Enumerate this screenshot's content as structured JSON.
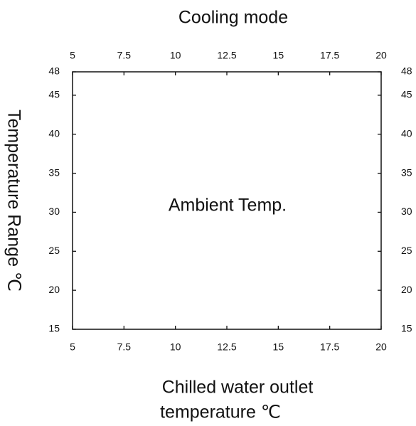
{
  "chart_data": {
    "type": "line",
    "title": "Cooling mode",
    "xlabel": [
      "Chilled water outlet",
      "temperature ℃"
    ],
    "ylabel": "Temperature Range ℃",
    "annotation": "Ambient Temp.",
    "xlim": [
      5,
      20
    ],
    "xticks": [
      5,
      7.5,
      10,
      12.5,
      15,
      17.5,
      20
    ],
    "ylim": [
      15,
      48
    ],
    "yticks": [
      15,
      20,
      25,
      30,
      35,
      40,
      45,
      48
    ]
  }
}
